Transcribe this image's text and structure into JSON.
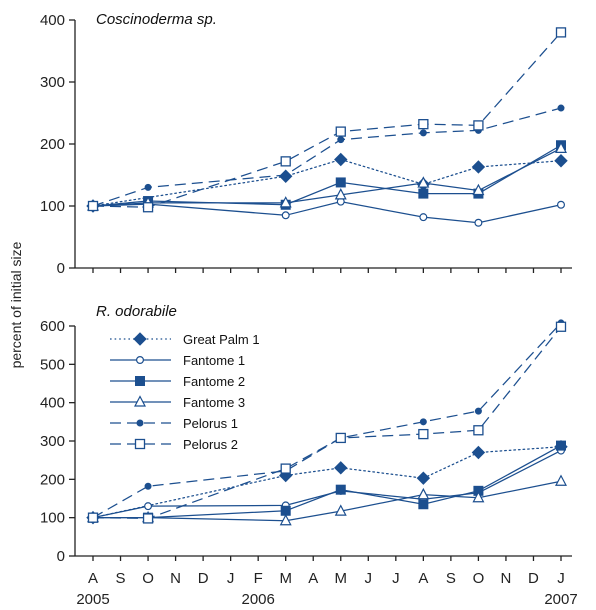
{
  "chart_data": {
    "type": "line",
    "ylabel": "percent of initial size",
    "x_months": [
      "2005-08",
      "2005-09",
      "2005-10",
      "2005-11",
      "2005-12",
      "2006-01",
      "2006-02",
      "2006-03",
      "2006-04",
      "2006-05",
      "2006-06",
      "2006-07",
      "2006-08",
      "2006-09",
      "2006-10",
      "2006-11",
      "2006-12",
      "2007-01"
    ],
    "x_tick_labels": [
      "A",
      "S",
      "O",
      "N",
      "D",
      "J",
      "F",
      "M",
      "A",
      "M",
      "J",
      "J",
      "A",
      "S",
      "O",
      "N",
      "D",
      "J"
    ],
    "year_labels": [
      {
        "label": "2005",
        "month": "2005-08"
      },
      {
        "label": "2006",
        "month": "2006-02"
      },
      {
        "label": "2007",
        "month": "2007-01"
      }
    ],
    "legend": {
      "placement": "top-left (lower panel)"
    },
    "colors": {
      "series": "#1c4f8f",
      "axis": "#222222"
    },
    "panels": [
      {
        "title": "Coscinoderma sp.",
        "ylim": [
          0,
          400
        ],
        "yticks": [
          0,
          100,
          200,
          300,
          400
        ],
        "series": [
          {
            "name": "Great Palm 1",
            "line": "dotted",
            "marker": "filled-diamond",
            "x": [
              "2005-08",
              "2006-03",
              "2006-05",
              "2006-08",
              "2006-10",
              "2007-01"
            ],
            "y": [
              100,
              148,
              175,
              135,
              163,
              173
            ]
          },
          {
            "name": "Fantome 1",
            "line": "solid",
            "marker": "open-circle",
            "x": [
              "2005-08",
              "2005-10",
              "2006-03",
              "2006-05",
              "2006-08",
              "2006-10",
              "2007-01"
            ],
            "y": [
              100,
              103,
              85,
              107,
              82,
              73,
              102
            ]
          },
          {
            "name": "Fantome 2",
            "line": "solid",
            "marker": "filled-square",
            "x": [
              "2005-08",
              "2005-10",
              "2006-03",
              "2006-05",
              "2006-08",
              "2006-10",
              "2007-01"
            ],
            "y": [
              100,
              108,
              102,
              138,
              120,
              120,
              198
            ]
          },
          {
            "name": "Fantome 3",
            "line": "solid",
            "marker": "open-triangle",
            "x": [
              "2005-08",
              "2005-10",
              "2006-03",
              "2006-05",
              "2006-08",
              "2006-10",
              "2007-01"
            ],
            "y": [
              100,
              105,
              105,
              118,
              137,
              125,
              193
            ]
          },
          {
            "name": "Pelorus 1",
            "line": "dashed",
            "marker": "small-filled-circle",
            "x": [
              "2005-08",
              "2005-10",
              "2006-03",
              "2006-05",
              "2006-08",
              "2006-10",
              "2007-01"
            ],
            "y": [
              100,
              130,
              150,
              207,
              218,
              222,
              258
            ]
          },
          {
            "name": "Pelorus 2",
            "line": "dashed",
            "marker": "open-square",
            "x": [
              "2005-08",
              "2005-10",
              "2006-03",
              "2006-05",
              "2006-08",
              "2006-10",
              "2007-01"
            ],
            "y": [
              100,
              98,
              172,
              220,
              232,
              230,
              380
            ]
          }
        ]
      },
      {
        "title": "R. odorabile",
        "ylim": [
          0,
          600
        ],
        "yticks": [
          0,
          100,
          200,
          300,
          400,
          500,
          600
        ],
        "series": [
          {
            "name": "Great Palm 1",
            "line": "dotted",
            "marker": "filled-diamond",
            "x": [
              "2005-08",
              "2006-03",
              "2006-05",
              "2006-08",
              "2006-10",
              "2007-01"
            ],
            "y": [
              100,
              210,
              230,
              203,
              270,
              285
            ]
          },
          {
            "name": "Fantome 1",
            "line": "solid",
            "marker": "open-circle",
            "x": [
              "2005-08",
              "2005-10",
              "2006-03",
              "2006-05",
              "2006-08",
              "2006-10",
              "2007-01"
            ],
            "y": [
              100,
              130,
              132,
              170,
              148,
              165,
              275
            ]
          },
          {
            "name": "Fantome 2",
            "line": "solid",
            "marker": "filled-square",
            "x": [
              "2005-08",
              "2005-10",
              "2006-03",
              "2006-05",
              "2006-08",
              "2006-10",
              "2007-01"
            ],
            "y": [
              100,
              100,
              118,
              173,
              135,
              170,
              288
            ]
          },
          {
            "name": "Fantome 3",
            "line": "solid",
            "marker": "open-triangle",
            "x": [
              "2005-08",
              "2005-10",
              "2006-03",
              "2006-05",
              "2006-08",
              "2006-10",
              "2007-01"
            ],
            "y": [
              100,
              100,
              92,
              117,
              160,
              152,
              195
            ]
          },
          {
            "name": "Pelorus 1",
            "line": "dashed",
            "marker": "small-filled-circle",
            "x": [
              "2005-08",
              "2005-10",
              "2006-03",
              "2006-05",
              "2006-08",
              "2006-10",
              "2007-01"
            ],
            "y": [
              100,
              182,
              222,
              308,
              350,
              378,
              608
            ]
          },
          {
            "name": "Pelorus 2",
            "line": "dashed",
            "marker": "open-square",
            "x": [
              "2005-08",
              "2005-10",
              "2006-03",
              "2006-05",
              "2006-08",
              "2006-10",
              "2007-01"
            ],
            "y": [
              100,
              98,
              228,
              308,
              318,
              328,
              598
            ]
          }
        ]
      }
    ]
  }
}
